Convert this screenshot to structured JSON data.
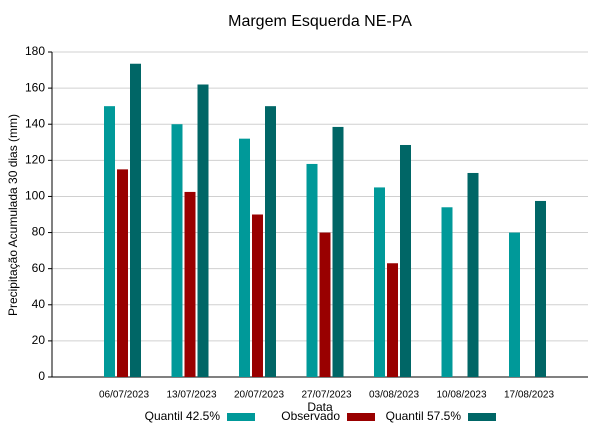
{
  "chart_data": {
    "type": "bar",
    "title": "Margem Esquerda NE-PA",
    "x_label": "Data",
    "y_label": "Precipitação Acumulada 30 dias (mm)",
    "categories": [
      "06/07/2023",
      "13/07/2023",
      "20/07/2023",
      "27/07/2023",
      "03/08/2023",
      "10/08/2023",
      "17/08/2023"
    ],
    "series": [
      {
        "name": "Quantil 42.5%",
        "color": "#009999",
        "values": [
          150,
          140,
          132,
          118,
          105,
          94,
          80
        ]
      },
      {
        "name": "Observado",
        "color": "#990000",
        "values": [
          115,
          102.5,
          90,
          80,
          63,
          null,
          null
        ]
      },
      {
        "name": "Quantil 57.5%",
        "color": "#006666",
        "values": [
          173.5,
          162,
          150,
          138.5,
          128.5,
          113,
          97.5
        ]
      }
    ],
    "ylim": [
      0,
      180
    ],
    "yticks": [
      0,
      20,
      40,
      60,
      80,
      100,
      120,
      140,
      160,
      180
    ],
    "grid": true
  }
}
